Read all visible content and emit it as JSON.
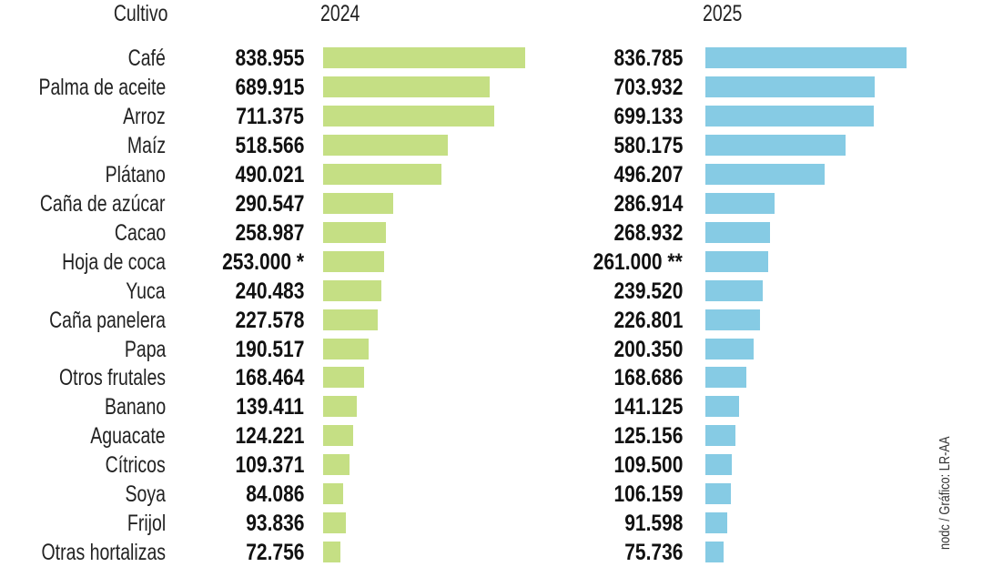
{
  "chart_data": {
    "type": "bar",
    "orientation": "horizontal",
    "category_header": "Cultivo",
    "categories": [
      "Café",
      "Palma de aceite",
      "Arroz",
      "Maíz",
      "Plátano",
      "Caña de azúcar",
      "Cacao",
      "Hoja de coca",
      "Yuca",
      "Caña panelera",
      "Papa",
      "Otros frutales",
      "Banano",
      "Aguacate",
      "Cítricos",
      "Soya",
      "Frijol",
      "Otras hortalizas"
    ],
    "series": [
      {
        "name": "2024",
        "color": "#c5df84",
        "values": [
          838955,
          689915,
          711375,
          518566,
          490021,
          290547,
          258987,
          253000,
          240483,
          227578,
          190517,
          168464,
          139411,
          124221,
          109371,
          84086,
          93836,
          72756
        ],
        "labels": [
          "838.955",
          "689.915",
          "711.375",
          "518.566",
          "490.021",
          "290.547",
          "258.987",
          "253.000 *",
          "240.483",
          "227.578",
          "190.517",
          "168.464",
          "139.411",
          "124.221",
          "109.371",
          "84.086",
          "93.836",
          "72.756"
        ]
      },
      {
        "name": "2025",
        "color": "#86cbe4",
        "values": [
          836785,
          703932,
          699133,
          580175,
          496207,
          286914,
          268932,
          261000,
          239520,
          226801,
          200350,
          168686,
          141125,
          125156,
          109500,
          106159,
          91598,
          75736
        ],
        "labels": [
          "836.785",
          "703.932",
          "699.133",
          "580.175",
          "496.207",
          "286.914",
          "268.932",
          "261.000 **",
          "239.520",
          "226.801",
          "200.350",
          "168.686",
          "141.125",
          "125.156",
          "109.500",
          "106.159",
          "91.598",
          "75.736"
        ]
      }
    ],
    "credit": "nodc / Gráfico: LR-AA"
  }
}
